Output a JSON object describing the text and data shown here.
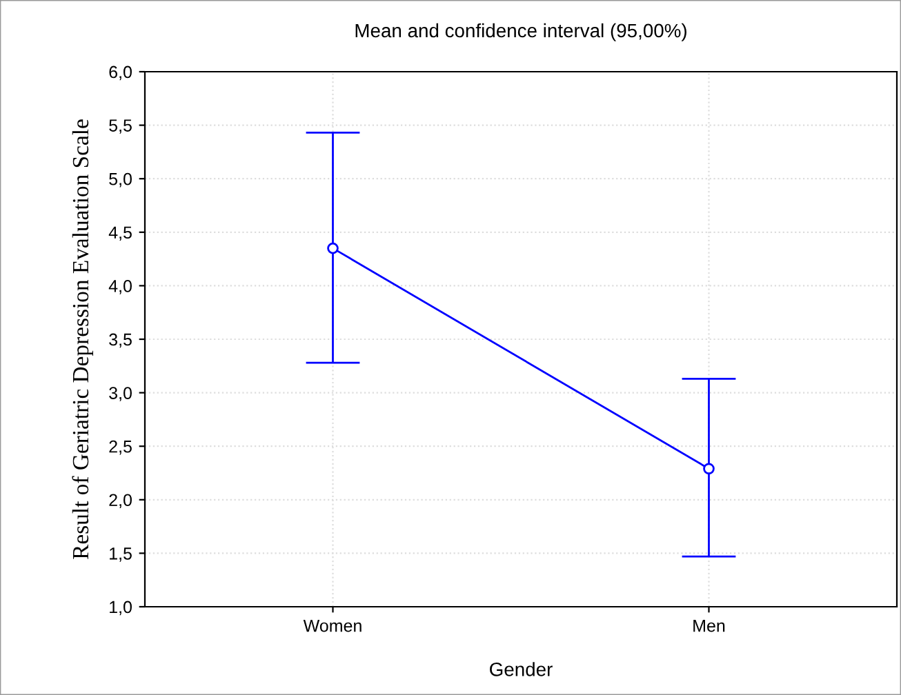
{
  "chart_data": {
    "type": "line",
    "title": "Mean and confidence interval (95,00%)",
    "xlabel": "Gender",
    "ylabel": "Result of Geriatric Depression Evaluation Scale",
    "categories": [
      "Women",
      "Men"
    ],
    "series": [
      {
        "color": "#0000ff",
        "values": [
          4.35,
          2.29
        ],
        "errors": [
          [
            3.28,
            5.43
          ],
          [
            1.47,
            3.13
          ]
        ]
      }
    ],
    "ylim": [
      1,
      6
    ],
    "yticks": [
      {
        "value": 1,
        "label": "1,0"
      },
      {
        "value": 1.5,
        "label": "1,5"
      },
      {
        "value": 2,
        "label": "2,0"
      },
      {
        "value": 2.5,
        "label": "2,5"
      },
      {
        "value": 3,
        "label": "3,0"
      },
      {
        "value": 3.5,
        "label": "3,5"
      },
      {
        "value": 4,
        "label": "4,0"
      },
      {
        "value": 4.5,
        "label": "4,5"
      },
      {
        "value": 5,
        "label": "5,0"
      },
      {
        "value": 5.5,
        "label": "5,5"
      },
      {
        "value": 6,
        "label": "6,0"
      }
    ],
    "grid": true,
    "marker": "circle",
    "line_style": "solid",
    "legend": false
  }
}
